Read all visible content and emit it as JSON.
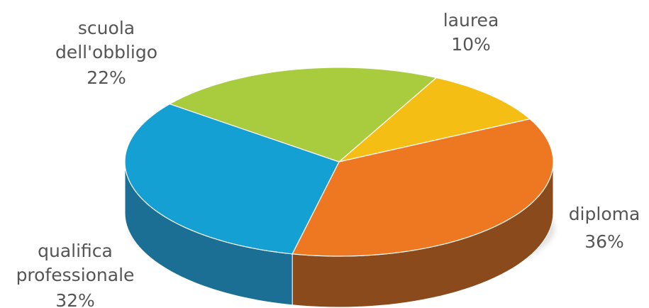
{
  "chart_data": {
    "type": "pie",
    "title": "",
    "categories": [
      "laurea",
      "diploma",
      "qualifica professionale",
      "scuola dell'obbligo"
    ],
    "label_lines": [
      [
        "laurea"
      ],
      [
        "diploma"
      ],
      [
        "qualifica",
        "professionale"
      ],
      [
        "scuola",
        "dell'obbligo"
      ]
    ],
    "values": [
      10,
      36,
      32,
      22
    ],
    "value_labels": [
      "10%",
      "36%",
      "32%",
      "22%"
    ],
    "colors": [
      "#F5BE15",
      "#EE7722",
      "#14A0D2",
      "#A8CC3E"
    ],
    "side_colors": [
      "#B08A10",
      "#8A4A1C",
      "#1B6E94",
      "#6F8A2A"
    ],
    "legend": "none",
    "style": "3d"
  }
}
